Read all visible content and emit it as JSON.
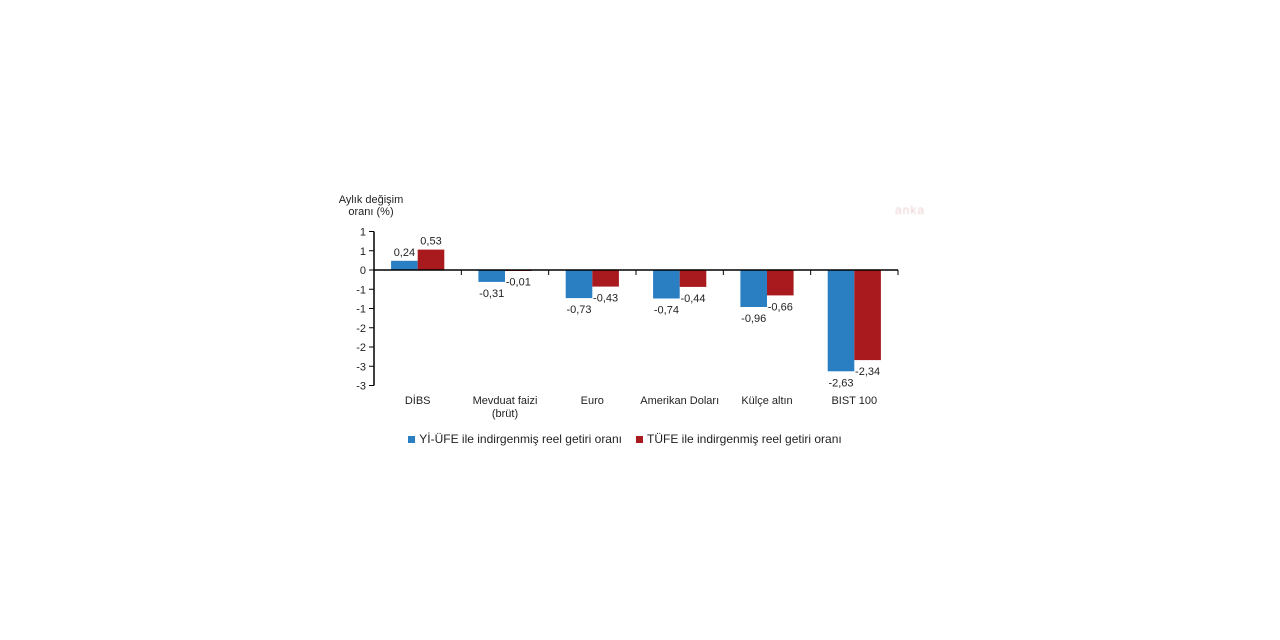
{
  "watermark": {
    "text": "anka"
  },
  "chart_data": {
    "type": "bar",
    "title": "",
    "ylabel": "Aylık değişim oranı (%)",
    "ylabel_lines": [
      "Aylık değişim",
      "oranı (%)"
    ],
    "categories": [
      "DİBS",
      "Mevduat faizi (brüt)",
      "Euro",
      "Amerikan Doları",
      "Külçe altın",
      "BIST 100"
    ],
    "category_label_lines": [
      [
        "DİBS"
      ],
      [
        "Mevduat faizi",
        "(brüt)"
      ],
      [
        "Euro"
      ],
      [
        "Amerikan Doları"
      ],
      [
        "Külçe altın"
      ],
      [
        "BIST 100"
      ]
    ],
    "series": [
      {
        "name": "Yİ-ÜFE ile indirgenmiş reel getiri oranı",
        "color": "#2A7EC2",
        "values": [
          0.24,
          -0.31,
          -0.73,
          -0.74,
          -0.96,
          -2.63
        ],
        "labels": [
          "0,24",
          "-0,31",
          "-0,73",
          "-0,74",
          "-0,96",
          "-2,63"
        ]
      },
      {
        "name": "TÜFE ile indirgenmiş reel getiri oranı",
        "color": "#A81A1D",
        "values": [
          0.53,
          -0.01,
          -0.43,
          -0.44,
          -0.66,
          -2.34
        ],
        "labels": [
          "0,53",
          "-0,01",
          "-0,43",
          "-0,44",
          "-0,66",
          "-2,34"
        ]
      }
    ],
    "y_axis": {
      "min": -3,
      "max": 1,
      "tick_step": 0.5,
      "tick_values": [
        1,
        0.5,
        0,
        -0.5,
        -1,
        -1.5,
        -2,
        -2.5,
        -3
      ],
      "tick_labels": [
        "1",
        "1",
        "0",
        "-1",
        "-1",
        "-2",
        "-2",
        "-3",
        "-3"
      ]
    },
    "grid": false,
    "legend_position": "bottom",
    "axis_color": "#000000",
    "text_color": "#1f1f1f"
  }
}
